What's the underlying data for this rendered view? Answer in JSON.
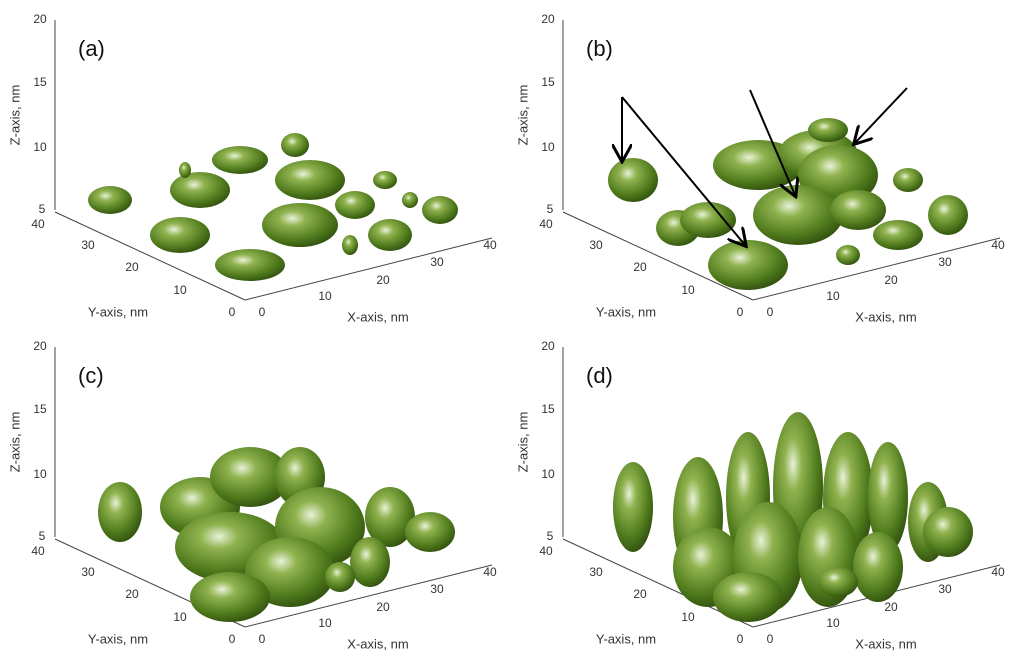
{
  "panels": [
    {
      "label": "(a)",
      "z_axis_title": "Z-axis, nm",
      "y_axis_title": "Y-axis, nm",
      "x_axis_title": "X-axis, nm",
      "z_ticks": [
        "20",
        "15",
        "10",
        "5"
      ],
      "y_ticks": [
        "40",
        "30",
        "20",
        "10",
        "0"
      ],
      "x_ticks": [
        "0",
        "10",
        "20",
        "30",
        "40"
      ]
    },
    {
      "label": "(b)",
      "z_axis_title": "Z-axis, nm",
      "y_axis_title": "Y-axis, nm",
      "x_axis_title": "X-axis, nm",
      "z_ticks": [
        "20",
        "15",
        "10",
        "5"
      ],
      "y_ticks": [
        "40",
        "30",
        "20",
        "10",
        "0"
      ],
      "x_ticks": [
        "0",
        "10",
        "20",
        "30",
        "40"
      ]
    },
    {
      "label": "(c)",
      "z_axis_title": "Z-axis, nm",
      "y_axis_title": "Y-axis, nm",
      "x_axis_title": "X-axis, nm",
      "z_ticks": [
        "20",
        "15",
        "10",
        "5"
      ],
      "y_ticks": [
        "40",
        "30",
        "20",
        "10",
        "0"
      ],
      "x_ticks": [
        "0",
        "10",
        "20",
        "30",
        "40"
      ]
    },
    {
      "label": "(d)",
      "z_axis_title": "Z-axis, nm",
      "y_axis_title": "Y-axis, nm",
      "x_axis_title": "X-axis, nm",
      "z_ticks": [
        "20",
        "15",
        "10",
        "5"
      ],
      "y_ticks": [
        "40",
        "30",
        "20",
        "10",
        "0"
      ],
      "x_ticks": [
        "0",
        "10",
        "20",
        "30",
        "40"
      ]
    }
  ]
}
